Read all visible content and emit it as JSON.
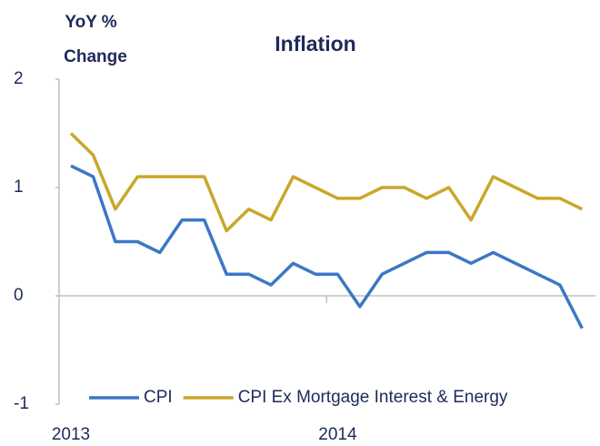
{
  "chart_data": {
    "type": "line",
    "title": "Inflation",
    "y_label": [
      "YoY %",
      "Change"
    ],
    "categories": [
      "2013",
      null,
      null,
      null,
      null,
      null,
      null,
      null,
      null,
      null,
      null,
      null,
      "2014",
      null,
      null,
      null,
      null,
      null,
      null,
      null,
      null,
      null,
      null,
      null
    ],
    "series": [
      {
        "name": "CPI",
        "color": "#3b78c4",
        "values": [
          1.2,
          1.1,
          0.5,
          0.5,
          0.4,
          0.7,
          0.7,
          0.2,
          0.2,
          0.1,
          0.3,
          0.2,
          0.2,
          -0.1,
          0.2,
          0.3,
          0.4,
          0.4,
          0.3,
          0.4,
          0.3,
          0.2,
          0.1,
          -0.3
        ]
      },
      {
        "name": "CPI Ex Mortgage Interest & Energy",
        "color": "#c9a82b",
        "values": [
          1.5,
          1.3,
          0.8,
          1.1,
          1.1,
          1.1,
          1.1,
          0.6,
          0.8,
          0.7,
          1.1,
          1.0,
          0.9,
          0.9,
          1.0,
          1.0,
          0.9,
          1.0,
          0.7,
          1.1,
          1.0,
          0.9,
          0.9,
          0.8
        ]
      }
    ],
    "ylim": [
      -1,
      2
    ],
    "yticks": [
      -1,
      0,
      1,
      2
    ],
    "legend": "bottom"
  }
}
